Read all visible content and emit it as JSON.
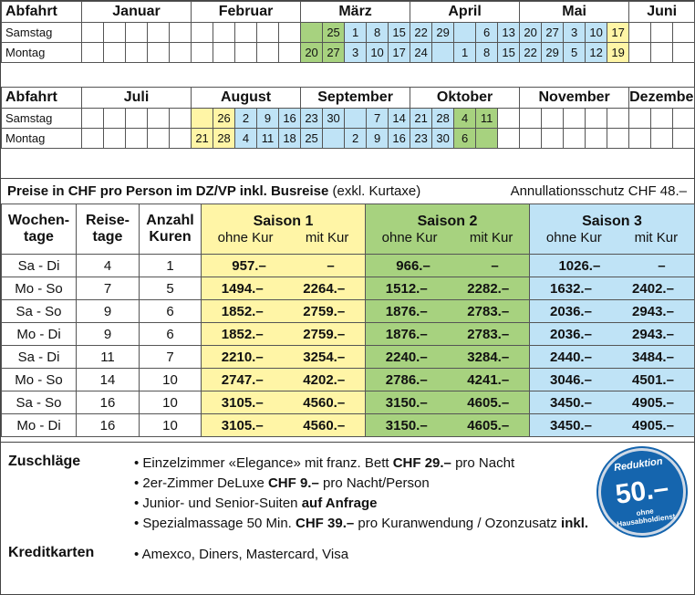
{
  "calendar": {
    "depart_label": "Abfahrt",
    "first_half": {
      "months": [
        "Januar",
        "Februar",
        "März",
        "April",
        "Mai",
        "Juni"
      ],
      "rows": [
        {
          "label": "Samstag",
          "cells": [
            [
              "",
              ""
            ],
            [
              "",
              ""
            ],
            [
              "",
              ""
            ],
            [
              "",
              ""
            ],
            [
              "",
              ""
            ],
            [
              "",
              ""
            ],
            [
              "",
              ""
            ],
            [
              "",
              ""
            ],
            [
              "",
              ""
            ],
            [
              "",
              ""
            ],
            [
              "",
              "g"
            ],
            [
              "25",
              "g"
            ],
            [
              "1",
              "b"
            ],
            [
              "8",
              "b"
            ],
            [
              "15",
              "b"
            ],
            [
              "22",
              "b"
            ],
            [
              "29",
              "b"
            ],
            [
              "",
              "b"
            ],
            [
              "6",
              "b"
            ],
            [
              "13",
              "b"
            ],
            [
              "20",
              "b"
            ],
            [
              "27",
              "b"
            ],
            [
              "3",
              "b"
            ],
            [
              "10",
              "b"
            ],
            [
              "17",
              "y"
            ],
            [
              "",
              ""
            ],
            [
              "",
              ""
            ],
            [
              "",
              ""
            ]
          ]
        },
        {
          "label": "Montag",
          "cells": [
            [
              "",
              ""
            ],
            [
              "",
              ""
            ],
            [
              "",
              ""
            ],
            [
              "",
              ""
            ],
            [
              "",
              ""
            ],
            [
              "",
              ""
            ],
            [
              "",
              ""
            ],
            [
              "",
              ""
            ],
            [
              "",
              ""
            ],
            [
              "",
              ""
            ],
            [
              "20",
              "g"
            ],
            [
              "27",
              "g"
            ],
            [
              "3",
              "b"
            ],
            [
              "10",
              "b"
            ],
            [
              "17",
              "b"
            ],
            [
              "24",
              "b"
            ],
            [
              "",
              "b"
            ],
            [
              "1",
              "b"
            ],
            [
              "8",
              "b"
            ],
            [
              "15",
              "b"
            ],
            [
              "22",
              "b"
            ],
            [
              "29",
              "b"
            ],
            [
              "5",
              "b"
            ],
            [
              "12",
              "b"
            ],
            [
              "19",
              "y"
            ],
            [
              "",
              ""
            ],
            [
              "",
              ""
            ],
            [
              "",
              ""
            ]
          ]
        }
      ]
    },
    "second_half": {
      "months": [
        "Juli",
        "August",
        "September",
        "Oktober",
        "November",
        "Dezember"
      ],
      "rows": [
        {
          "label": "Samstag",
          "cells": [
            [
              "",
              ""
            ],
            [
              "",
              ""
            ],
            [
              "",
              ""
            ],
            [
              "",
              ""
            ],
            [
              "",
              ""
            ],
            [
              "",
              "y"
            ],
            [
              "26",
              "y"
            ],
            [
              "2",
              "b"
            ],
            [
              "9",
              "b"
            ],
            [
              "16",
              "b"
            ],
            [
              "23",
              "b"
            ],
            [
              "30",
              "b"
            ],
            [
              "",
              "b"
            ],
            [
              "7",
              "b"
            ],
            [
              "14",
              "b"
            ],
            [
              "21",
              "b"
            ],
            [
              "28",
              "b"
            ],
            [
              "4",
              "g"
            ],
            [
              "11",
              "g"
            ],
            [
              "",
              ""
            ],
            [
              "",
              ""
            ],
            [
              "",
              ""
            ],
            [
              "",
              ""
            ],
            [
              "",
              ""
            ],
            [
              "",
              ""
            ],
            [
              "",
              ""
            ],
            [
              "",
              ""
            ],
            [
              "",
              ""
            ]
          ]
        },
        {
          "label": "Montag",
          "cells": [
            [
              "",
              ""
            ],
            [
              "",
              ""
            ],
            [
              "",
              ""
            ],
            [
              "",
              ""
            ],
            [
              "",
              ""
            ],
            [
              "21",
              "y"
            ],
            [
              "28",
              "y"
            ],
            [
              "4",
              "b"
            ],
            [
              "11",
              "b"
            ],
            [
              "18",
              "b"
            ],
            [
              "25",
              "b"
            ],
            [
              "",
              "b"
            ],
            [
              "2",
              "b"
            ],
            [
              "9",
              "b"
            ],
            [
              "16",
              "b"
            ],
            [
              "23",
              "b"
            ],
            [
              "30",
              "b"
            ],
            [
              "6",
              "g"
            ],
            [
              "",
              "g"
            ],
            [
              "",
              ""
            ],
            [
              "",
              ""
            ],
            [
              "",
              ""
            ],
            [
              "",
              ""
            ],
            [
              "",
              ""
            ],
            [
              "",
              ""
            ],
            [
              "",
              ""
            ],
            [
              "",
              ""
            ],
            [
              "",
              ""
            ]
          ]
        }
      ]
    }
  },
  "prices": {
    "title_bold": "Preise in CHF pro Person im DZ/VP inkl. Busreise",
    "title_normal": " (exkl. Kurtaxe)",
    "cancel_note": "Annullationsschutz CHF 48.–",
    "headers": {
      "weekdays": [
        "Wochen-",
        "tage"
      ],
      "days": [
        "Reise-",
        "tage"
      ],
      "cures": [
        "Anzahl",
        "Kuren"
      ],
      "seasons": [
        "Saison 1",
        "Saison 2",
        "Saison 3"
      ],
      "without": "ohne Kur",
      "with": "mit Kur"
    },
    "rows": [
      {
        "weekdays": "Sa - Di",
        "days": "4",
        "cures": "1",
        "s1a": "957.–",
        "s1b": "–",
        "s2a": "966.–",
        "s2b": "–",
        "s3a": "1026.–",
        "s3b": "–"
      },
      {
        "weekdays": "Mo - So",
        "days": "7",
        "cures": "5",
        "s1a": "1494.–",
        "s1b": "2264.–",
        "s2a": "1512.–",
        "s2b": "2282.–",
        "s3a": "1632.–",
        "s3b": "2402.–"
      },
      {
        "weekdays": "Sa - So",
        "days": "9",
        "cures": "6",
        "s1a": "1852.–",
        "s1b": "2759.–",
        "s2a": "1876.–",
        "s2b": "2783.–",
        "s3a": "2036.–",
        "s3b": "2943.–"
      },
      {
        "weekdays": "Mo - Di",
        "days": "9",
        "cures": "6",
        "s1a": "1852.–",
        "s1b": "2759.–",
        "s2a": "1876.–",
        "s2b": "2783.–",
        "s3a": "2036.–",
        "s3b": "2943.–"
      },
      {
        "weekdays": "Sa - Di",
        "days": "11",
        "cures": "7",
        "s1a": "2210.–",
        "s1b": "3254.–",
        "s2a": "2240.–",
        "s2b": "3284.–",
        "s3a": "2440.–",
        "s3b": "3484.–"
      },
      {
        "weekdays": "Mo - So",
        "days": "14",
        "cures": "10",
        "s1a": "2747.–",
        "s1b": "4202.–",
        "s2a": "2786.–",
        "s2b": "4241.–",
        "s3a": "3046.–",
        "s3b": "4501.–"
      },
      {
        "weekdays": "Sa - So",
        "days": "16",
        "cures": "10",
        "s1a": "3105.–",
        "s1b": "4560.–",
        "s2a": "3150.–",
        "s2b": "4605.–",
        "s3a": "3450.–",
        "s3b": "4905.–"
      },
      {
        "weekdays": "Mo - Di",
        "days": "16",
        "cures": "10",
        "s1a": "3105.–",
        "s1b": "4560.–",
        "s2a": "3150.–",
        "s2b": "4605.–",
        "s3a": "3450.–",
        "s3b": "4905.–"
      }
    ]
  },
  "extras": {
    "surcharges_label": "Zuschläge",
    "surcharges": [
      {
        "pre": "• Einzelzimmer «Elegance» mit franz. Bett ",
        "bold": "CHF 29.–",
        "post": " pro Nacht"
      },
      {
        "pre": "• 2er-Zimmer DeLuxe ",
        "bold": "CHF 9.–",
        "post": " pro Nacht/Person"
      },
      {
        "pre": "• Junior- und Senior-Suiten ",
        "bold": "auf Anfrage",
        "post": ""
      },
      {
        "pre": "• Spezialmassage 50 Min. ",
        "bold": "CHF 39.–",
        "post": " pro Kuranwendung / Ozonzusatz ",
        "bold2": "inkl."
      }
    ],
    "cards_label": "Kreditkarten",
    "cards": "• Amexco, Diners, Mastercard, Visa"
  },
  "badge": {
    "top": "Reduktion",
    "amount": "50.–",
    "line1": "ohne",
    "line2": "Hausabholdienst"
  },
  "colors": {
    "season1": "#fff5a6",
    "season2": "#a7d27f",
    "season3": "#bfe3f6",
    "badge": "#1565ae"
  }
}
